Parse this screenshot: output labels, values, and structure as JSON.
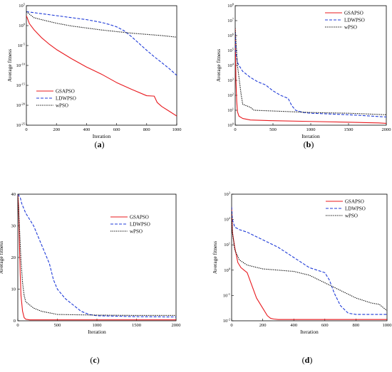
{
  "colors": {
    "GSAPSO": "#e8191e",
    "LDWPSO": "#1f3bd8",
    "wPSO": "#000000"
  },
  "chart_data": [
    {
      "panel": "(a)",
      "type": "line",
      "xlabel": "Iteration",
      "ylabel": "Average fitness",
      "xlim": [
        0,
        1000
      ],
      "xticks": [
        0,
        200,
        400,
        600,
        800,
        1000
      ],
      "yscale": "log",
      "ylim_exp": [
        -25,
        5
      ],
      "yticks_exp": [
        -25,
        -20,
        -15,
        -10,
        -5,
        0,
        5
      ],
      "legend": "bottom-left",
      "series": [
        {
          "name": "GSAPSO",
          "style": "solid",
          "x": [
            0,
            20,
            50,
            100,
            150,
            200,
            300,
            400,
            500,
            600,
            700,
            800,
            850,
            870,
            900,
            950,
            1000
          ],
          "y_exp": [
            2.5,
            0.5,
            -1.0,
            -3.0,
            -4.6,
            -6.0,
            -8.3,
            -10.4,
            -12.2,
            -14.3,
            -16.0,
            -17.6,
            -17.7,
            -19.3,
            -20.3,
            -21.5,
            -22.7
          ]
        },
        {
          "name": "LDWPSO",
          "style": "dashed",
          "x": [
            0,
            100,
            200,
            300,
            400,
            500,
            550,
            600,
            650,
            700,
            750,
            800,
            850,
            900,
            950,
            1000
          ],
          "y_exp": [
            3.5,
            3.0,
            2.5,
            2.0,
            1.5,
            0.8,
            0.3,
            -0.3,
            -1.3,
            -2.8,
            -4.5,
            -6.2,
            -7.8,
            -9.3,
            -10.8,
            -12.5
          ]
        },
        {
          "name": "wPSO",
          "style": "dotted",
          "x": [
            0,
            50,
            100,
            200,
            300,
            400,
            500,
            600,
            700,
            800,
            900,
            1000
          ],
          "y_exp": [
            3.5,
            2.0,
            1.5,
            0.6,
            -0.1,
            -0.6,
            -1.1,
            -1.5,
            -1.9,
            -2.2,
            -2.5,
            -2.9
          ]
        }
      ]
    },
    {
      "panel": "(b)",
      "type": "line",
      "xlabel": "Iteration",
      "ylabel": "Average fitness",
      "xlim": [
        0,
        2000
      ],
      "xticks": [
        0,
        500,
        1000,
        1500,
        2000
      ],
      "yscale": "log",
      "ylim_exp": [
        0,
        8
      ],
      "yticks_exp": [
        0,
        1,
        2,
        3,
        4,
        5,
        6,
        7,
        8
      ],
      "legend": "top-right",
      "series": [
        {
          "name": "GSAPSO",
          "style": "solid",
          "x": [
            0,
            10,
            20,
            30,
            50,
            100,
            200,
            500,
            1000,
            1500,
            1900,
            2000
          ],
          "y_exp": [
            6.5,
            3.0,
            1.6,
            0.9,
            0.6,
            0.45,
            0.35,
            0.3,
            0.25,
            0.2,
            0.15,
            0.12
          ]
        },
        {
          "name": "LDWPSO",
          "style": "dashed",
          "x": [
            0,
            10,
            30,
            50,
            100,
            200,
            300,
            400,
            500,
            600,
            700,
            750,
            800,
            900,
            1000,
            1500,
            2000
          ],
          "y_exp": [
            6.2,
            4.8,
            4.2,
            4.0,
            3.6,
            3.2,
            2.9,
            2.7,
            2.3,
            2.0,
            1.8,
            1.3,
            1.0,
            0.85,
            0.8,
            0.7,
            0.55
          ]
        },
        {
          "name": "wPSO",
          "style": "dotted",
          "x": [
            0,
            30,
            80,
            100,
            150,
            200,
            250,
            500,
            1000,
            1500,
            2000
          ],
          "y_exp": [
            6.5,
            4.0,
            2.0,
            1.4,
            1.3,
            1.2,
            1.0,
            0.95,
            0.85,
            0.8,
            0.7
          ]
        }
      ]
    },
    {
      "panel": "(c)",
      "type": "line",
      "xlabel": "Iteration",
      "ylabel": "Average fitness",
      "xlim": [
        0,
        2000
      ],
      "xticks": [
        0,
        500,
        1000,
        1500,
        2000
      ],
      "ylim": [
        0,
        40
      ],
      "yticks": [
        0,
        10,
        20,
        30,
        40
      ],
      "legend": "top-right",
      "series": [
        {
          "name": "GSAPSO",
          "style": "solid",
          "x": [
            0,
            10,
            20,
            30,
            40,
            60,
            80,
            100,
            150,
            2000
          ],
          "y": [
            40,
            36,
            25,
            15,
            8,
            3,
            1,
            0.5,
            0.3,
            0.3
          ]
        },
        {
          "name": "LDWPSO",
          "style": "dashed",
          "x": [
            0,
            30,
            50,
            100,
            200,
            300,
            350,
            400,
            450,
            500,
            600,
            700,
            800,
            900,
            1000,
            1500,
            2000
          ],
          "y": [
            40,
            39,
            37,
            34,
            30,
            24,
            21,
            18,
            13,
            10,
            7,
            5,
            3,
            2,
            1.6,
            1.3,
            1.2
          ]
        },
        {
          "name": "wPSO",
          "style": "dotted",
          "x": [
            0,
            20,
            40,
            60,
            80,
            100,
            150,
            200,
            300,
            500,
            1000,
            1500,
            2000
          ],
          "y": [
            40,
            30,
            19,
            12,
            8,
            6,
            5,
            4,
            3,
            2,
            1.8,
            1.7,
            1.7
          ]
        }
      ]
    },
    {
      "panel": "(d)",
      "type": "line",
      "xlabel": "Iteration",
      "ylabel": "Average fitness",
      "xlim": [
        0,
        1000
      ],
      "xticks": [
        0,
        200,
        400,
        600,
        800,
        1000
      ],
      "yscale": "log",
      "ylim_exp": [
        -2,
        3
      ],
      "yticks_exp": [
        -2,
        -1,
        0,
        1,
        2,
        3
      ],
      "legend": "top-right",
      "series": [
        {
          "name": "GSAPSO",
          "style": "solid",
          "x": [
            0,
            5,
            20,
            40,
            60,
            80,
            100,
            130,
            160,
            200,
            230,
            250,
            270,
            300,
            1000
          ],
          "y_exp": [
            2.5,
            1.5,
            0.9,
            0.3,
            0.1,
            0.0,
            -0.1,
            -0.6,
            -1.1,
            -1.5,
            -1.8,
            -1.9,
            -1.93,
            -1.95,
            -1.95
          ]
        },
        {
          "name": "LDWPSO",
          "style": "dashed",
          "x": [
            0,
            5,
            20,
            50,
            100,
            200,
            300,
            400,
            500,
            600,
            630,
            660,
            700,
            750,
            800,
            1000
          ],
          "y_exp": [
            2.5,
            2.0,
            1.7,
            1.6,
            1.5,
            1.2,
            0.9,
            0.5,
            0.1,
            -0.1,
            -0.4,
            -0.9,
            -1.4,
            -1.7,
            -1.75,
            -1.75
          ]
        },
        {
          "name": "wPSO",
          "style": "dotted",
          "x": [
            0,
            5,
            20,
            50,
            100,
            200,
            300,
            400,
            500,
            600,
            700,
            800,
            900,
            950,
            1000
          ],
          "y_exp": [
            2.3,
            1.5,
            0.8,
            0.4,
            0.2,
            0.05,
            0.0,
            -0.05,
            -0.2,
            -0.5,
            -0.8,
            -1.1,
            -1.3,
            -1.35,
            -1.6
          ]
        }
      ]
    }
  ]
}
